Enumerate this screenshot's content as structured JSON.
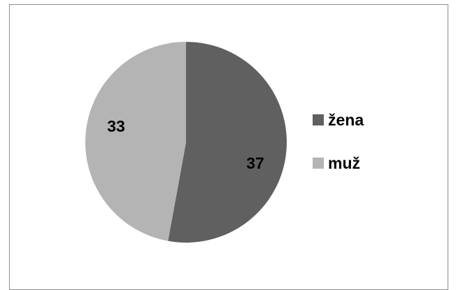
{
  "chart_data": {
    "type": "pie",
    "categories": [
      "žena",
      "muž"
    ],
    "values": [
      37,
      33
    ],
    "data_labels": [
      "37",
      "33"
    ],
    "colors": [
      "#606060",
      "#b4b4b4"
    ],
    "legend_position": "right"
  }
}
